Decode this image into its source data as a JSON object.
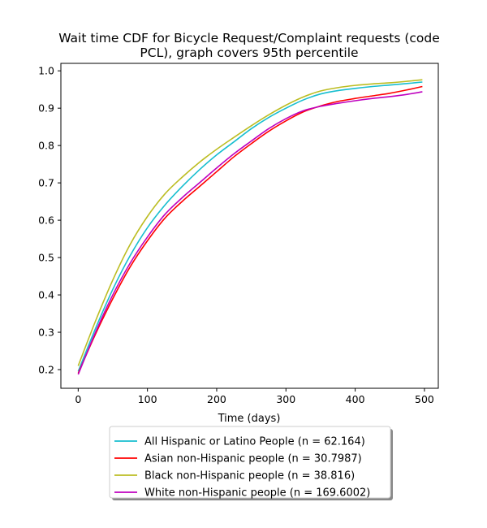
{
  "chart_data": {
    "type": "line",
    "title_lines": [
      "Wait time CDF for Bicycle Request/Complaint  requests (code",
      "PCL), graph covers 95th percentile"
    ],
    "xlabel": "Time (days)",
    "ylabel": "",
    "xlim": [
      -25,
      520
    ],
    "ylim": [
      0.15,
      1.02
    ],
    "xticks": [
      0,
      100,
      200,
      300,
      400,
      500
    ],
    "xtick_labels": [
      "0",
      "100",
      "200",
      "300",
      "400",
      "500"
    ],
    "yticks": [
      0.2,
      0.3,
      0.4,
      0.5,
      0.6,
      0.7,
      0.8,
      0.9,
      1.0
    ],
    "ytick_labels": [
      "0.2",
      "0.3",
      "0.4",
      "0.5",
      "0.6",
      "0.7",
      "0.8",
      "0.9",
      "1.0"
    ],
    "grid": false,
    "legend_position": "below-center",
    "x": [
      0,
      25,
      50,
      75,
      100,
      125,
      150,
      175,
      200,
      225,
      250,
      275,
      300,
      325,
      350,
      375,
      400,
      425,
      450,
      475,
      497
    ],
    "series": [
      {
        "name": "All Hispanic or Latino People (n = 62.164)",
        "color": "#17becf",
        "values": [
          0.195,
          0.31,
          0.415,
          0.505,
          0.58,
          0.64,
          0.69,
          0.735,
          0.775,
          0.81,
          0.845,
          0.875,
          0.9,
          0.922,
          0.938,
          0.947,
          0.953,
          0.958,
          0.962,
          0.966,
          0.97
        ]
      },
      {
        "name": "Asian non-Hispanic people (n = 30.7987)",
        "color": "#ff0000",
        "values": [
          0.19,
          0.295,
          0.39,
          0.475,
          0.545,
          0.605,
          0.65,
          0.69,
          0.73,
          0.77,
          0.805,
          0.838,
          0.866,
          0.89,
          0.906,
          0.918,
          0.926,
          0.933,
          0.94,
          0.949,
          0.958
        ]
      },
      {
        "name": "Black non-Hispanic people (n = 38.816)",
        "color": "#bcbd22",
        "values": [
          0.21,
          0.33,
          0.44,
          0.535,
          0.61,
          0.67,
          0.715,
          0.755,
          0.79,
          0.822,
          0.853,
          0.882,
          0.908,
          0.93,
          0.946,
          0.955,
          0.961,
          0.965,
          0.968,
          0.972,
          0.976
        ]
      },
      {
        "name": "White non-Hispanic people (n = 169.6002)",
        "color": "#bf00bf",
        "values": [
          0.187,
          0.3,
          0.4,
          0.485,
          0.555,
          0.615,
          0.66,
          0.7,
          0.74,
          0.778,
          0.812,
          0.845,
          0.872,
          0.893,
          0.905,
          0.913,
          0.92,
          0.926,
          0.931,
          0.937,
          0.944
        ]
      }
    ]
  }
}
